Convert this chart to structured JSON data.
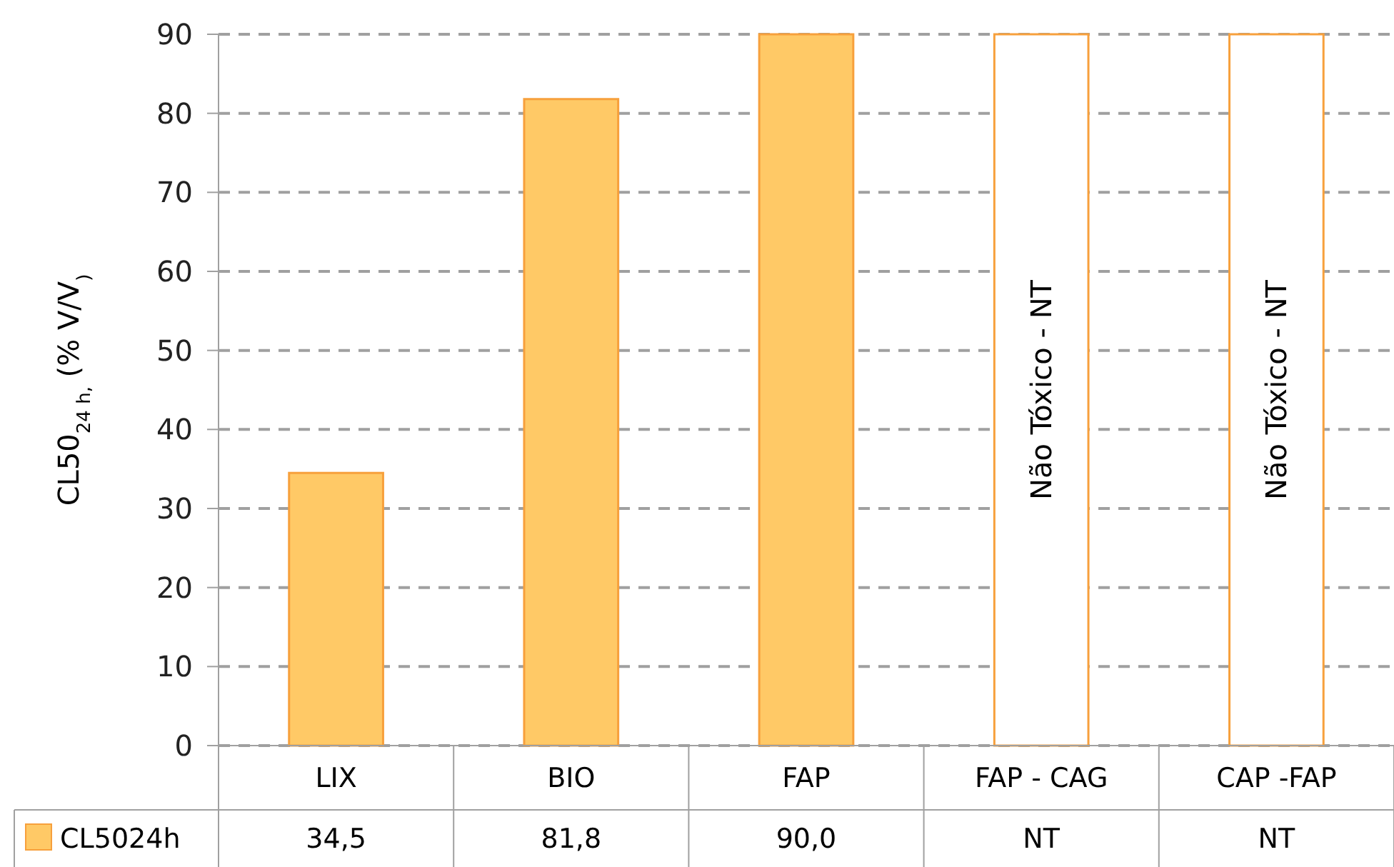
{
  "chart_data": {
    "type": "bar",
    "ylabel": "CL50$_{24 h,}$ (% V/V$_{)}$",
    "categories": [
      "LIX",
      "BIO",
      "FAP",
      "FAP - CAG",
      "CAP -FAP"
    ],
    "series": [
      {
        "name": "CL5024h",
        "color": "#ffc966",
        "colors": [
          "#ffc966",
          "#ffc966",
          "#ffc966",
          "#ffffff",
          "#ffffff"
        ],
        "values": [
          34.5,
          81.8,
          90.0,
          90,
          90
        ],
        "value_labels": [
          "34,5",
          "81,8",
          "90,0",
          "NT",
          "NT"
        ]
      }
    ],
    "annotations": [
      "Não Tóxico - NT",
      "Não Tóxico - NT"
    ],
    "ylim": [
      0,
      90
    ],
    "yticks": [
      0,
      10,
      20,
      30,
      40,
      50,
      60,
      70,
      80,
      90
    ],
    "grid": "y",
    "legend": "bottom"
  }
}
